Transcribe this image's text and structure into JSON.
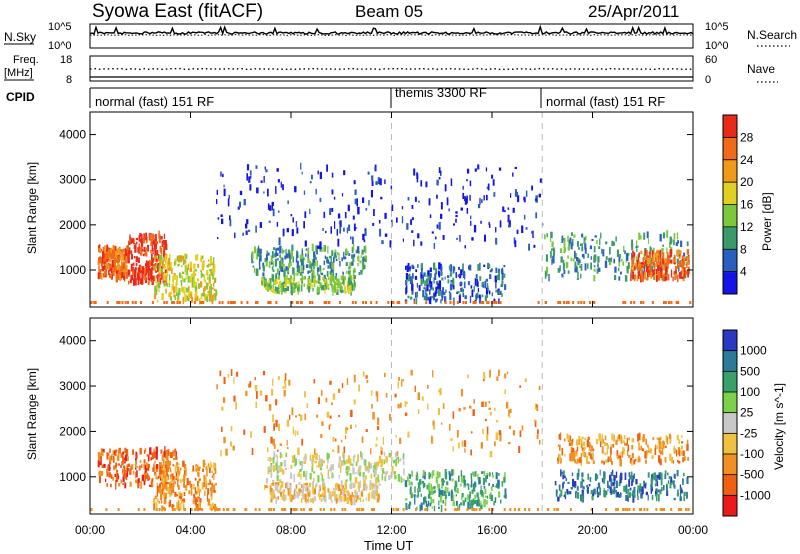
{
  "header": {
    "station": "Syowa East (fitACF)",
    "beam": "Beam 05",
    "date": "25/Apr/2011"
  },
  "top_panels": {
    "nsky_label": "N.Sky",
    "nsky_ticks": [
      "10^5",
      "10^0"
    ],
    "nsearch_label": "N.Search",
    "nsearch_ticks": [
      "10^5",
      "10^0"
    ],
    "freq_label_1": "Freq.",
    "freq_label_2": "[MHz]",
    "freq_ticks": [
      "18",
      "8"
    ],
    "nave_label": "Nave",
    "nave_ticks": [
      "60",
      "0"
    ],
    "cpid_label": "CPID",
    "cpid_modes": [
      {
        "label": "normal (fast) 151 RF",
        "start_hour": 0
      },
      {
        "label": "themis 3300 RF",
        "start_hour": 12
      },
      {
        "label": "normal (fast) 151 RF",
        "start_hour": 18
      }
    ]
  },
  "x_axis": {
    "label": "Time UT",
    "ticks": [
      "00:00",
      "04:00",
      "08:00",
      "12:00",
      "16:00",
      "20:00",
      "00:00"
    ]
  },
  "chart_data": [
    {
      "type": "heatmap",
      "title": "",
      "xlabel": "Time UT",
      "ylabel": "Slant Range [km]",
      "xlim": [
        0,
        24
      ],
      "ylim": [
        180,
        4500
      ],
      "yticks": [
        "1000",
        "2000",
        "3000",
        "4000"
      ],
      "colorbar": {
        "label": "Power [dB]",
        "ticks": [
          "4",
          "8",
          "12",
          "16",
          "20",
          "24",
          "28"
        ],
        "colors": [
          "#1414e6",
          "#2a5fc0",
          "#3a9a6a",
          "#7cc83a",
          "#e0d020",
          "#f09a1a",
          "#f06a1a",
          "#e82a1a"
        ]
      },
      "regions": [
        {
          "t0": 0.3,
          "t1": 1.5,
          "r0": 800,
          "r1": 1500,
          "color_index": 6
        },
        {
          "t0": 1.5,
          "t1": 3.0,
          "r0": 700,
          "r1": 1800,
          "color_index": 7
        },
        {
          "t0": 2.5,
          "t1": 5.0,
          "r0": 300,
          "r1": 1300,
          "color_index": 4
        },
        {
          "t0": 6.4,
          "t1": 11.0,
          "r0": 900,
          "r1": 1500,
          "color_index": 2
        },
        {
          "t0": 6.8,
          "t1": 10.5,
          "r0": 500,
          "r1": 850,
          "color_index": 3
        },
        {
          "t0": 12.5,
          "t1": 16.5,
          "r0": 300,
          "r1": 1100,
          "color_index": 1
        },
        {
          "t0": 18.0,
          "t1": 23.8,
          "r0": 800,
          "r1": 1800,
          "color_index": 2
        },
        {
          "t0": 21.5,
          "t1": 23.8,
          "r0": 800,
          "r1": 1400,
          "color_index": 6
        },
        {
          "t0": 5.0,
          "t1": 18.0,
          "r0": 1500,
          "r1": 3300,
          "color_index": 0
        }
      ]
    },
    {
      "type": "heatmap",
      "title": "",
      "xlabel": "Time UT",
      "ylabel": "Slant Range [km]",
      "xlim": [
        0,
        24
      ],
      "ylim": [
        180,
        4500
      ],
      "yticks": [
        "1000",
        "2000",
        "3000",
        "4000"
      ],
      "colorbar": {
        "label": "Velocity [m s^-1]",
        "ticks": [
          "1000",
          "500",
          "100",
          "25",
          "-25",
          "-100",
          "-500",
          "-1000"
        ],
        "colors": [
          "#2a3ac0",
          "#2a7a9a",
          "#3aa06a",
          "#7cd04a",
          "#c8c8c8",
          "#f0c040",
          "#f09020",
          "#f06010",
          "#e81a1a"
        ]
      },
      "regions": [
        {
          "t0": 0.3,
          "t1": 3.5,
          "r0": 800,
          "r1": 1600,
          "color_index": 7
        },
        {
          "t0": 2.5,
          "t1": 5.0,
          "r0": 300,
          "r1": 1300,
          "color_index": 6
        },
        {
          "t0": 7.0,
          "t1": 12.5,
          "r0": 900,
          "r1": 1500,
          "color_index": 4
        },
        {
          "t0": 6.8,
          "t1": 11.5,
          "r0": 450,
          "r1": 850,
          "color_index": 5
        },
        {
          "t0": 12.5,
          "t1": 16.5,
          "r0": 300,
          "r1": 1100,
          "color_index": 2
        },
        {
          "t0": 18.5,
          "t1": 23.8,
          "r0": 1300,
          "r1": 1900,
          "color_index": 6
        },
        {
          "t0": 18.5,
          "t1": 23.8,
          "r0": 500,
          "r1": 1100,
          "color_index": 1
        },
        {
          "t0": 5.0,
          "t1": 18.0,
          "r0": 1500,
          "r1": 3300,
          "color_index": 6
        }
      ]
    }
  ]
}
